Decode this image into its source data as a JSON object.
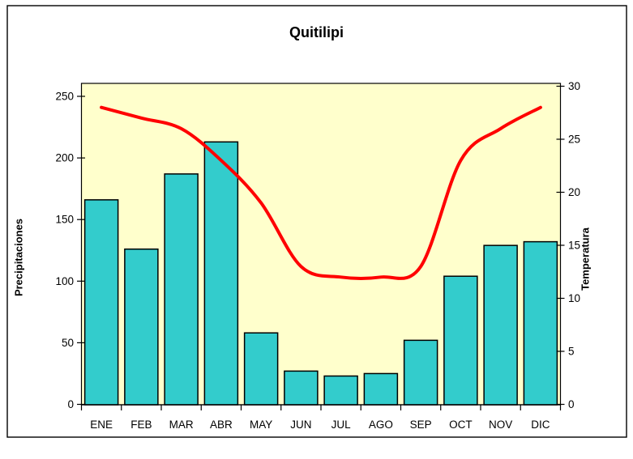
{
  "title": "Quitilipi",
  "chart_data": {
    "type": "bar+line",
    "title": "Quitilipi",
    "categories": [
      "ENE",
      "FEB",
      "MAR",
      "ABR",
      "MAY",
      "JUN",
      "JUL",
      "AGO",
      "SEP",
      "OCT",
      "NOV",
      "DIC"
    ],
    "series": [
      {
        "name": "Precipitaciones",
        "type": "bar",
        "axis": "left",
        "values": [
          166,
          126,
          187,
          213,
          58,
          27,
          23,
          25,
          52,
          104,
          129,
          132
        ],
        "color": "#33CCCC"
      },
      {
        "name": "Temperatura",
        "type": "line",
        "axis": "right",
        "smooth": true,
        "values": [
          28,
          27,
          26,
          23,
          19,
          13,
          12,
          12,
          13,
          23,
          26,
          28
        ],
        "color": "#FF0000"
      }
    ],
    "left_axis": {
      "label": "Precipitaciones",
      "min": 0,
      "max": 250,
      "ticks": [
        0,
        50,
        100,
        150,
        200,
        250
      ]
    },
    "right_axis": {
      "label": "Temperatura",
      "min": 0,
      "max": 30,
      "ticks": [
        0,
        5,
        10,
        15,
        20,
        25,
        30
      ]
    },
    "plot_bg": "#FFFFCC",
    "outer_bg": "#FFFFFF",
    "border_color": "#000000",
    "grid": false,
    "legend": "none"
  }
}
